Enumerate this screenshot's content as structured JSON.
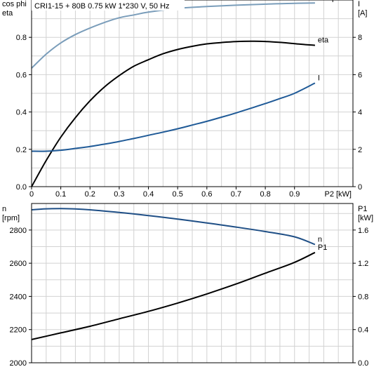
{
  "header": {
    "title": "CRI1-15 + 80B   0.75 kW   1*230 V, 50 Hz"
  },
  "colors": {
    "cos_phi": "#7a9dba",
    "eta": "#000000",
    "I": "#1f5a97",
    "n": "#1f4f86",
    "P1": "#000000",
    "grid": "#d2d2d2"
  },
  "chart_data": [
    {
      "type": "line",
      "panel": "top",
      "x_axis": {
        "label": "P2 [kW]",
        "range": [
          0,
          1.1
        ],
        "ticks": [
          0,
          0.1,
          0.2,
          0.3,
          0.4,
          0.5,
          0.6,
          0.7,
          0.8,
          0.9
        ]
      },
      "y_left": {
        "label_lines": [
          "cos phi",
          "eta"
        ],
        "range": [
          0,
          1.0
        ],
        "ticks": [
          0.0,
          0.2,
          0.4,
          0.6,
          0.8
        ]
      },
      "y_right": {
        "label_lines": [
          "I",
          "[A]"
        ],
        "range": [
          0,
          10
        ],
        "ticks": [
          0,
          2,
          4,
          6,
          8
        ]
      },
      "grid": true,
      "series": [
        {
          "name": "cos phi",
          "axis": "left",
          "color_key": "cos_phi",
          "x": [
            0,
            0.05,
            0.1,
            0.15,
            0.2,
            0.25,
            0.3,
            0.35,
            0.4,
            0.5,
            0.6,
            0.7,
            0.8,
            0.9,
            0.97
          ],
          "y": [
            0.635,
            0.71,
            0.77,
            0.815,
            0.85,
            0.88,
            0.905,
            0.92,
            0.935,
            0.955,
            0.965,
            0.972,
            0.978,
            0.982,
            0.984
          ]
        },
        {
          "name": "eta",
          "axis": "left",
          "color_key": "eta",
          "x": [
            0,
            0.05,
            0.1,
            0.15,
            0.2,
            0.25,
            0.3,
            0.35,
            0.4,
            0.45,
            0.5,
            0.55,
            0.6,
            0.65,
            0.7,
            0.75,
            0.8,
            0.85,
            0.9,
            0.97
          ],
          "y": [
            0.0,
            0.14,
            0.265,
            0.37,
            0.46,
            0.535,
            0.595,
            0.645,
            0.68,
            0.712,
            0.735,
            0.752,
            0.765,
            0.772,
            0.777,
            0.779,
            0.778,
            0.773,
            0.766,
            0.757
          ]
        },
        {
          "name": "I",
          "axis": "right",
          "color_key": "I",
          "x": [
            0,
            0.05,
            0.1,
            0.15,
            0.2,
            0.25,
            0.3,
            0.35,
            0.4,
            0.45,
            0.5,
            0.55,
            0.6,
            0.65,
            0.7,
            0.75,
            0.8,
            0.85,
            0.9,
            0.97
          ],
          "y": [
            1.9,
            1.9,
            1.95,
            2.05,
            2.15,
            2.28,
            2.42,
            2.58,
            2.75,
            2.92,
            3.1,
            3.3,
            3.5,
            3.72,
            3.95,
            4.2,
            4.45,
            4.72,
            5.0,
            5.55
          ]
        }
      ]
    },
    {
      "type": "line",
      "panel": "bottom",
      "x_axis": {
        "range": [
          0,
          1.1
        ]
      },
      "y_left": {
        "label_lines": [
          "n",
          "[rpm]"
        ],
        "range": [
          2000,
          2960
        ],
        "ticks": [
          2000,
          2200,
          2400,
          2600,
          2800
        ]
      },
      "y_right": {
        "label_lines": [
          "P1",
          "[kW]"
        ],
        "range": [
          0.0,
          1.92
        ],
        "ticks": [
          0.0,
          0.4,
          0.8,
          1.2,
          1.6
        ]
      },
      "grid": true,
      "series": [
        {
          "name": "n",
          "axis": "left",
          "color_key": "n",
          "x": [
            0,
            0.05,
            0.1,
            0.15,
            0.2,
            0.3,
            0.4,
            0.5,
            0.6,
            0.7,
            0.8,
            0.9,
            0.97
          ],
          "y": [
            2922,
            2928,
            2929,
            2927,
            2922,
            2906,
            2887,
            2866,
            2843,
            2818,
            2791,
            2759,
            2713
          ]
        },
        {
          "name": "P1",
          "axis": "right",
          "color_key": "P1",
          "x": [
            0,
            0.1,
            0.2,
            0.3,
            0.4,
            0.5,
            0.6,
            0.7,
            0.8,
            0.9,
            0.97
          ],
          "y": [
            0.28,
            0.36,
            0.44,
            0.53,
            0.62,
            0.72,
            0.83,
            0.95,
            1.08,
            1.21,
            1.33
          ]
        }
      ]
    }
  ]
}
